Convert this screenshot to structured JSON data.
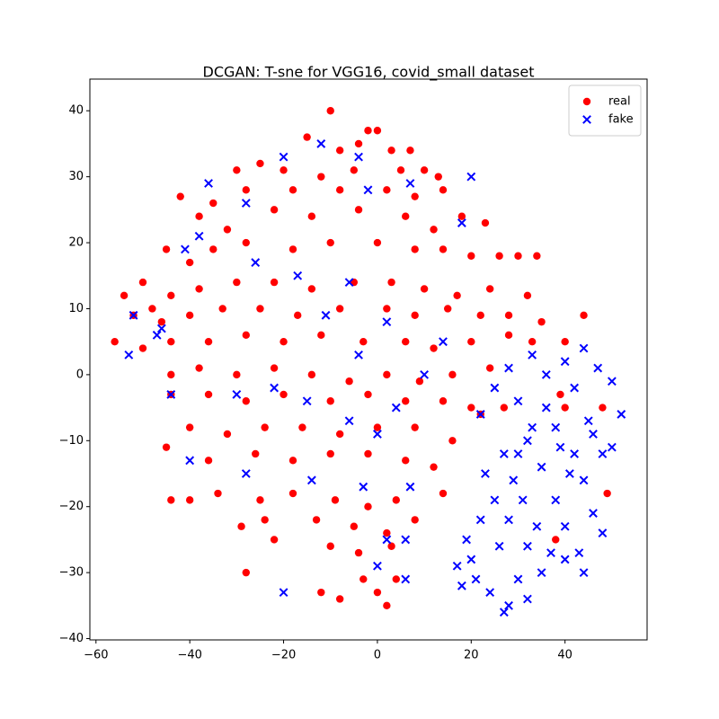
{
  "chart_data": {
    "type": "scatter",
    "title": "DCGAN: T-sne for VGG16, covid_small dataset",
    "xlim": [
      -61.3,
      57.5
    ],
    "ylim": [
      -40.2,
      44.8
    ],
    "xticks": [
      {
        "value": -60,
        "label": "−60"
      },
      {
        "value": -40,
        "label": "−40"
      },
      {
        "value": -20,
        "label": "−20"
      },
      0,
      20,
      40
    ],
    "yticks": [
      {
        "value": -40,
        "label": "−40"
      },
      {
        "value": -30,
        "label": "−30"
      },
      {
        "value": -20,
        "label": "−20"
      },
      {
        "value": -10,
        "label": "−10"
      },
      0,
      10,
      20,
      30,
      40
    ],
    "legend": "upper right",
    "series": [
      {
        "name": "real",
        "color": "#ff0000",
        "marker": "circle",
        "x": [
          -10,
          -2,
          0,
          -4,
          -15,
          -8,
          3,
          7,
          -20,
          -25,
          -30,
          -12,
          -5,
          5,
          10,
          13,
          -28,
          -35,
          -42,
          -18,
          -8,
          2,
          8,
          14,
          -38,
          -32,
          -22,
          -14,
          -4,
          6,
          12,
          18,
          23,
          -45,
          -40,
          -35,
          -28,
          -18,
          -10,
          0,
          8,
          14,
          20,
          26,
          30,
          34,
          -50,
          -54,
          -48,
          -44,
          -38,
          -30,
          -22,
          -14,
          -5,
          3,
          10,
          17,
          24,
          32,
          -52,
          -46,
          -40,
          -33,
          -25,
          -17,
          -8,
          2,
          8,
          15,
          22,
          28,
          35,
          44,
          -56,
          -50,
          -44,
          -36,
          -28,
          -20,
          -12,
          -3,
          6,
          12,
          20,
          28,
          33,
          40,
          -44,
          -38,
          -30,
          -22,
          -14,
          -6,
          2,
          9,
          16,
          24,
          -44,
          -36,
          -28,
          -20,
          -10,
          -2,
          6,
          14,
          20,
          27,
          -40,
          -32,
          -24,
          -16,
          -8,
          0,
          8,
          16,
          -45,
          -36,
          -26,
          -18,
          -10,
          -2,
          6,
          12,
          -44,
          -40,
          -34,
          -25,
          -18,
          -9,
          -2,
          4,
          14,
          -29,
          -24,
          -13,
          -5,
          2,
          8,
          -22,
          -10,
          -4,
          3,
          -28,
          -12,
          -8,
          -3,
          0,
          2,
          4,
          39,
          40,
          38,
          49,
          48,
          22
        ],
        "values": [
          40,
          37,
          37,
          35,
          36,
          34,
          34,
          34,
          31,
          32,
          31,
          30,
          31,
          31,
          31,
          30,
          28,
          26,
          27,
          28,
          28,
          28,
          27,
          28,
          24,
          22,
          25,
          24,
          25,
          24,
          22,
          24,
          23,
          19,
          17,
          19,
          20,
          19,
          20,
          20,
          19,
          19,
          18,
          18,
          18,
          18,
          14,
          12,
          10,
          12,
          13,
          14,
          14,
          13,
          14,
          14,
          13,
          12,
          13,
          12,
          9,
          8,
          9,
          10,
          10,
          9,
          10,
          10,
          9,
          10,
          9,
          9,
          8,
          9,
          5,
          4,
          5,
          5,
          6,
          5,
          6,
          5,
          5,
          4,
          5,
          6,
          5,
          5,
          0,
          1,
          0,
          1,
          0,
          -1,
          0,
          -1,
          0,
          1,
          -3,
          -3,
          -4,
          -3,
          -4,
          -3,
          -4,
          -4,
          -5,
          -5,
          -8,
          -9,
          -8,
          -8,
          -9,
          -8,
          -8,
          -10,
          -11,
          -13,
          -12,
          -13,
          -12,
          -12,
          -13,
          -14,
          -19,
          -19,
          -18,
          -19,
          -18,
          -19,
          -20,
          -19,
          -18,
          -23,
          -22,
          -22,
          -23,
          -24,
          -22,
          -25,
          -26,
          -27,
          -26,
          -30,
          -33,
          -34,
          -31,
          -33,
          -35,
          -31,
          -3,
          -5,
          -25,
          -18,
          -5,
          -6
        ]
      },
      {
        "name": "fake",
        "color": "#0000ff",
        "marker": "x",
        "x": [
          -52,
          -46,
          -41,
          -36,
          -28,
          -20,
          -12,
          -4,
          -2,
          7,
          20,
          18,
          -17,
          -6,
          -11,
          -38,
          -26,
          -4,
          2,
          -47,
          -53,
          -44,
          -30,
          -22,
          -15,
          -6,
          0,
          4,
          10,
          14,
          -40,
          -28,
          -14,
          -3,
          7,
          -20,
          6,
          0,
          2,
          6,
          22,
          25,
          28,
          30,
          33,
          36,
          40,
          44,
          47,
          50,
          52,
          45,
          38,
          32,
          27,
          23,
          29,
          35,
          42,
          48,
          50,
          44,
          38,
          31,
          25,
          22,
          28,
          34,
          40,
          46,
          48,
          43,
          37,
          32,
          26,
          19,
          17,
          21,
          24,
          28,
          27,
          32,
          35,
          40,
          44,
          30,
          20,
          18,
          41,
          36,
          42,
          33,
          30,
          46,
          39
        ],
        "values": [
          9,
          7,
          19,
          29,
          26,
          33,
          35,
          33,
          28,
          29,
          30,
          23,
          15,
          14,
          9,
          21,
          17,
          3,
          8,
          6,
          3,
          -3,
          -3,
          -2,
          -4,
          -7,
          -9,
          -5,
          0,
          5,
          -13,
          -15,
          -16,
          -17,
          -17,
          -33,
          -31,
          -29,
          -25,
          -25,
          -6,
          -2,
          1,
          -4,
          3,
          0,
          2,
          4,
          1,
          -1,
          -6,
          -7,
          -8,
          -10,
          -12,
          -15,
          -16,
          -14,
          -12,
          -12,
          -11,
          -16,
          -19,
          -19,
          -19,
          -22,
          -22,
          -23,
          -23,
          -21,
          -24,
          -27,
          -27,
          -26,
          -26,
          -25,
          -29,
          -31,
          -33,
          -35,
          -36,
          -34,
          -30,
          -28,
          -30,
          -31,
          -28,
          -32,
          -15,
          -5,
          -2,
          -8,
          -12,
          -9,
          -11
        ]
      }
    ]
  }
}
